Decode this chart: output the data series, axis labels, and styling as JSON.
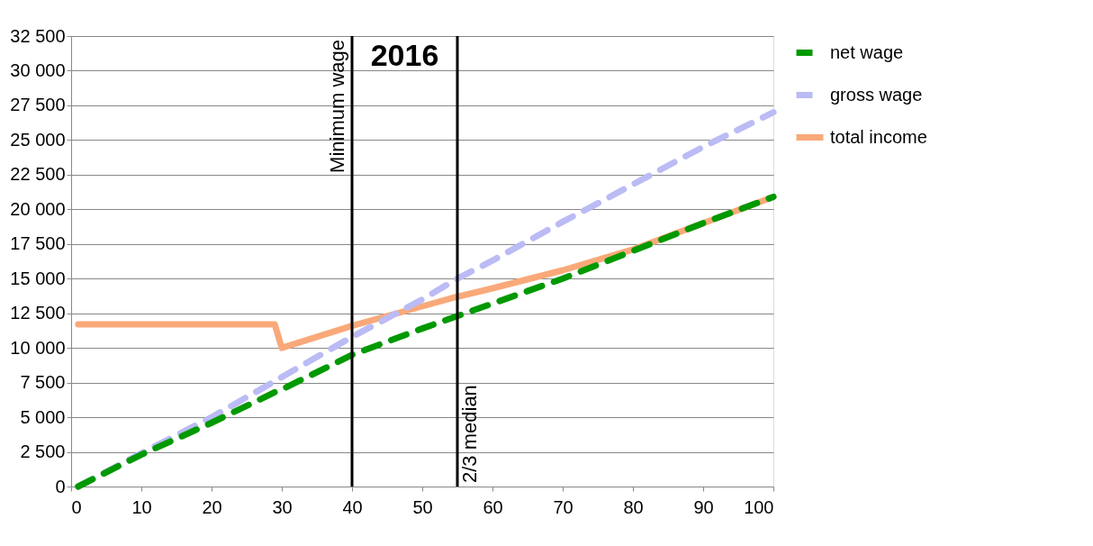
{
  "chart_data": {
    "type": "line",
    "x": [
      1,
      10,
      20,
      29,
      30,
      40,
      50,
      55,
      60,
      70,
      76,
      80,
      90,
      100
    ],
    "series": [
      {
        "name": "net wage",
        "color": "#009900",
        "line_style": "dashed",
        "values": [
          0,
          2300,
          4600,
          6800,
          7000,
          9500,
          11400,
          12300,
          13200,
          15000,
          16200,
          17000,
          19000,
          20900
        ]
      },
      {
        "name": "gross wage",
        "color": "#bbbbf5",
        "line_style": "dashed",
        "values": [
          0,
          2400,
          5000,
          7600,
          7900,
          10800,
          13500,
          15000,
          16300,
          19100,
          20700,
          21800,
          24500,
          27000
        ]
      },
      {
        "name": "total income",
        "color": "#f9a979",
        "line_style": "solid",
        "values": [
          11700,
          11700,
          11700,
          11700,
          10000,
          11600,
          13000,
          13700,
          14300,
          15600,
          16500,
          17100,
          19000,
          20900
        ]
      }
    ],
    "xlim": [
      0,
      100
    ],
    "xticks": [
      0,
      10,
      20,
      30,
      40,
      50,
      60,
      70,
      80,
      90,
      100
    ],
    "ylim": [
      0,
      32500
    ],
    "yticks": [
      {
        "value": 0,
        "label": "0"
      },
      {
        "value": 2500,
        "label": "2 500"
      },
      {
        "value": 5000,
        "label": "5 000"
      },
      {
        "value": 7500,
        "label": "7 500"
      },
      {
        "value": 10000,
        "label": "10 000"
      },
      {
        "value": 12500,
        "label": "12 500"
      },
      {
        "value": 15000,
        "label": "15 000"
      },
      {
        "value": 17500,
        "label": "17 500"
      },
      {
        "value": 20000,
        "label": "20 000"
      },
      {
        "value": 22500,
        "label": "22 500"
      },
      {
        "value": 25000,
        "label": "25 000"
      },
      {
        "value": 27500,
        "label": "27 500"
      },
      {
        "value": 30000,
        "label": "30 000"
      },
      {
        "value": 32500,
        "label": "32 500"
      }
    ],
    "ref_lines": [
      {
        "axis": "x",
        "value": 40,
        "label": "Minimum wage",
        "color": "#000000"
      },
      {
        "axis": "x",
        "value": 55,
        "label": "2/3 median",
        "color": "#000000"
      }
    ],
    "annotations": [
      "2016"
    ],
    "grid": "y",
    "legend": "right",
    "marker": "none"
  }
}
